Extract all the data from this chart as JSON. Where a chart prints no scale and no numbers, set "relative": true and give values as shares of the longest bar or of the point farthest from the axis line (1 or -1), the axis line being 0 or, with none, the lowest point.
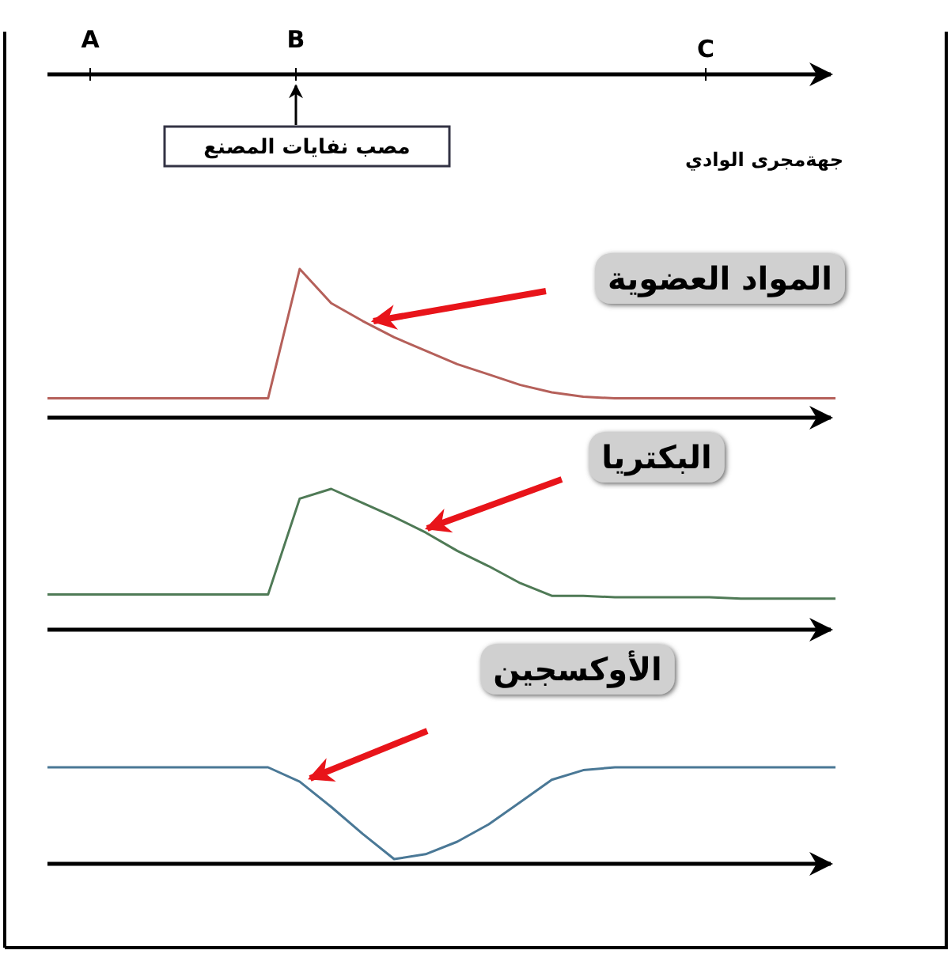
{
  "chart_data": [
    {
      "type": "other",
      "annotations": [
        "A",
        "B",
        "C",
        "جهةمجرى الوادي",
        "مصب نفايات المصنع"
      ]
    },
    {
      "type": "line",
      "title": "المواد العضوية",
      "relative": true,
      "categories": [
        null,
        null,
        null,
        null,
        null,
        null,
        null,
        null,
        null,
        null,
        null,
        null,
        null,
        null,
        null,
        null,
        null,
        null,
        null,
        null,
        null,
        null,
        null,
        null,
        null,
        null
      ],
      "series": [
        {
          "color": "#b5605a",
          "values": [
            0.13,
            0.13,
            0.13,
            0.13,
            0.13,
            0.13,
            0.13,
            0.13,
            1,
            0.77,
            0.65,
            0.54,
            0.45,
            0.36,
            0.29,
            0.22,
            0.17,
            0.14,
            0.13,
            0.13,
            0.13,
            0.13,
            0.13,
            0.13,
            0.13,
            0.13
          ]
        }
      ]
    },
    {
      "type": "line",
      "title": "البكتريا",
      "relative": true,
      "categories": [
        null,
        null,
        null,
        null,
        null,
        null,
        null,
        null,
        null,
        null,
        null,
        null,
        null,
        null,
        null,
        null,
        null,
        null,
        null,
        null,
        null,
        null,
        null,
        null,
        null,
        null
      ],
      "series": [
        {
          "color": "#4f7a56",
          "values": [
            0.25,
            0.25,
            0.25,
            0.25,
            0.25,
            0.25,
            0.25,
            0.25,
            0.93,
            1,
            0.9,
            0.8,
            0.69,
            0.56,
            0.45,
            0.33,
            0.24,
            0.24,
            0.23,
            0.23,
            0.23,
            0.23,
            0.22,
            0.22,
            0.22,
            0.22
          ]
        }
      ]
    },
    {
      "type": "line",
      "title": "الأوكسجين",
      "relative": true,
      "categories": [
        null,
        null,
        null,
        null,
        null,
        null,
        null,
        null,
        null,
        null,
        null,
        null,
        null,
        null,
        null,
        null,
        null,
        null,
        null,
        null,
        null,
        null,
        null,
        null,
        null,
        null
      ],
      "series": [
        {
          "color": "#4a7896",
          "values": [
            1,
            1,
            1,
            1,
            1,
            1,
            1,
            1,
            0.85,
            0.59,
            0.31,
            0.05,
            0.1,
            0.23,
            0.41,
            0.64,
            0.87,
            0.97,
            1,
            1,
            1,
            1,
            1,
            1,
            1,
            1
          ]
        }
      ]
    }
  ]
}
